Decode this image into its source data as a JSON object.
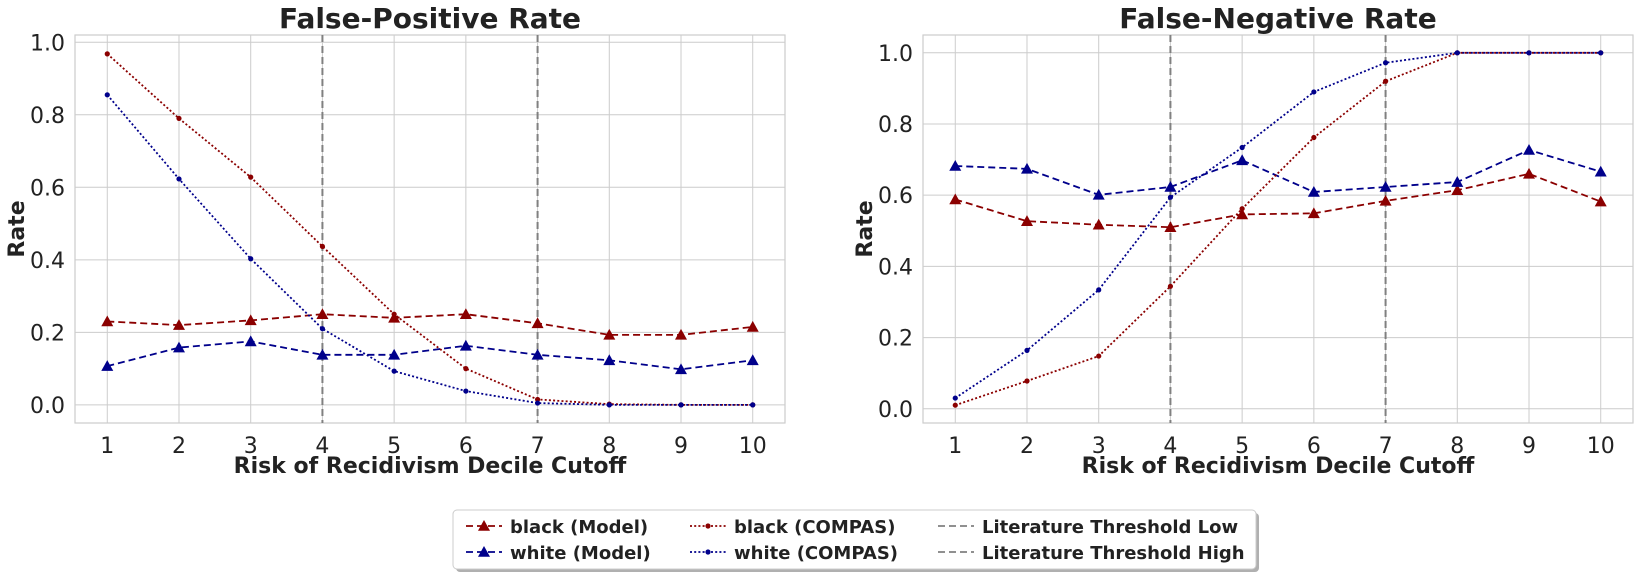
{
  "chart_data": [
    {
      "type": "line",
      "title": "False-Positive Rate",
      "xlabel": "Risk of Recidivism Decile Cutoff",
      "ylabel": "Rate",
      "x": [
        1,
        2,
        3,
        4,
        5,
        6,
        7,
        8,
        9,
        10
      ],
      "xlim": [
        0.55,
        10.45
      ],
      "ylim": [
        -0.05,
        1.02
      ],
      "yticks": [
        0.0,
        0.2,
        0.4,
        0.6,
        0.8,
        1.0
      ],
      "ytick_labels": [
        "0.0",
        "0.2",
        "0.4",
        "0.6",
        "0.8",
        "1.0"
      ],
      "grid": true,
      "thresholds": [
        4,
        7
      ],
      "series": [
        {
          "name": "black (Model)",
          "color": "#8b0000",
          "dash": "dashed",
          "marker": "triangle",
          "values": [
            0.23,
            0.22,
            0.233,
            0.25,
            0.24,
            0.25,
            0.225,
            0.193,
            0.193,
            0.215
          ]
        },
        {
          "name": "white (Model)",
          "color": "#00008b",
          "dash": "dashed",
          "marker": "triangle",
          "values": [
            0.107,
            0.158,
            0.175,
            0.138,
            0.138,
            0.163,
            0.138,
            0.123,
            0.098,
            0.123
          ]
        },
        {
          "name": "black (COMPAS)",
          "color": "#8b0000",
          "dash": "dotted",
          "marker": "dot",
          "values": [
            0.968,
            0.79,
            0.628,
            0.437,
            0.25,
            0.1,
            0.015,
            0.002,
            0.0,
            0.0
          ]
        },
        {
          "name": "white (COMPAS)",
          "color": "#00008b",
          "dash": "dotted",
          "marker": "dot",
          "values": [
            0.855,
            0.623,
            0.403,
            0.21,
            0.093,
            0.038,
            0.005,
            0.0,
            0.0,
            0.0
          ]
        }
      ]
    },
    {
      "type": "line",
      "title": "False-Negative Rate",
      "xlabel": "Risk of Recidivism Decile Cutoff",
      "ylabel": "Rate",
      "x": [
        1,
        2,
        3,
        4,
        5,
        6,
        7,
        8,
        9,
        10
      ],
      "xlim": [
        0.55,
        10.45
      ],
      "ylim": [
        -0.04,
        1.05
      ],
      "yticks": [
        0.0,
        0.2,
        0.4,
        0.6,
        0.8,
        1.0
      ],
      "ytick_labels": [
        "0.0",
        "0.2",
        "0.4",
        "0.6",
        "0.8",
        "1.0"
      ],
      "grid": true,
      "thresholds": [
        4,
        7
      ],
      "series": [
        {
          "name": "black (Model)",
          "color": "#8b0000",
          "dash": "dashed",
          "marker": "triangle",
          "values": [
            0.588,
            0.527,
            0.517,
            0.51,
            0.546,
            0.549,
            0.584,
            0.614,
            0.66,
            0.582
          ]
        },
        {
          "name": "white (Model)",
          "color": "#00008b",
          "dash": "dashed",
          "marker": "triangle",
          "values": [
            0.682,
            0.674,
            0.601,
            0.623,
            0.698,
            0.609,
            0.623,
            0.637,
            0.727,
            0.666
          ]
        },
        {
          "name": "black (COMPAS)",
          "color": "#8b0000",
          "dash": "dotted",
          "marker": "dot",
          "values": [
            0.01,
            0.078,
            0.148,
            0.344,
            0.562,
            0.762,
            0.92,
            1.0,
            1.0,
            1.0
          ]
        },
        {
          "name": "white (COMPAS)",
          "color": "#00008b",
          "dash": "dotted",
          "marker": "dot",
          "values": [
            0.03,
            0.164,
            0.334,
            0.594,
            0.734,
            0.89,
            0.972,
            1.0,
            1.0,
            1.0
          ]
        }
      ]
    }
  ],
  "legend": {
    "placement": "bottom-center",
    "entries": [
      {
        "label": "black (Model)",
        "color": "#8b0000",
        "dash": "dashed",
        "marker": "triangle"
      },
      {
        "label": "white (Model)",
        "color": "#00008b",
        "dash": "dashed",
        "marker": "triangle"
      },
      {
        "label": "black (COMPAS)",
        "color": "#8b0000",
        "dash": "dotted",
        "marker": "dot"
      },
      {
        "label": "white (COMPAS)",
        "color": "#00008b",
        "dash": "dotted",
        "marker": "dot"
      },
      {
        "label": "Literature Threshold Low",
        "color": "#808080",
        "dash": "dashed",
        "marker": "none"
      },
      {
        "label": "Literature Threshold High",
        "color": "#808080",
        "dash": "dashed",
        "marker": "none"
      }
    ]
  }
}
